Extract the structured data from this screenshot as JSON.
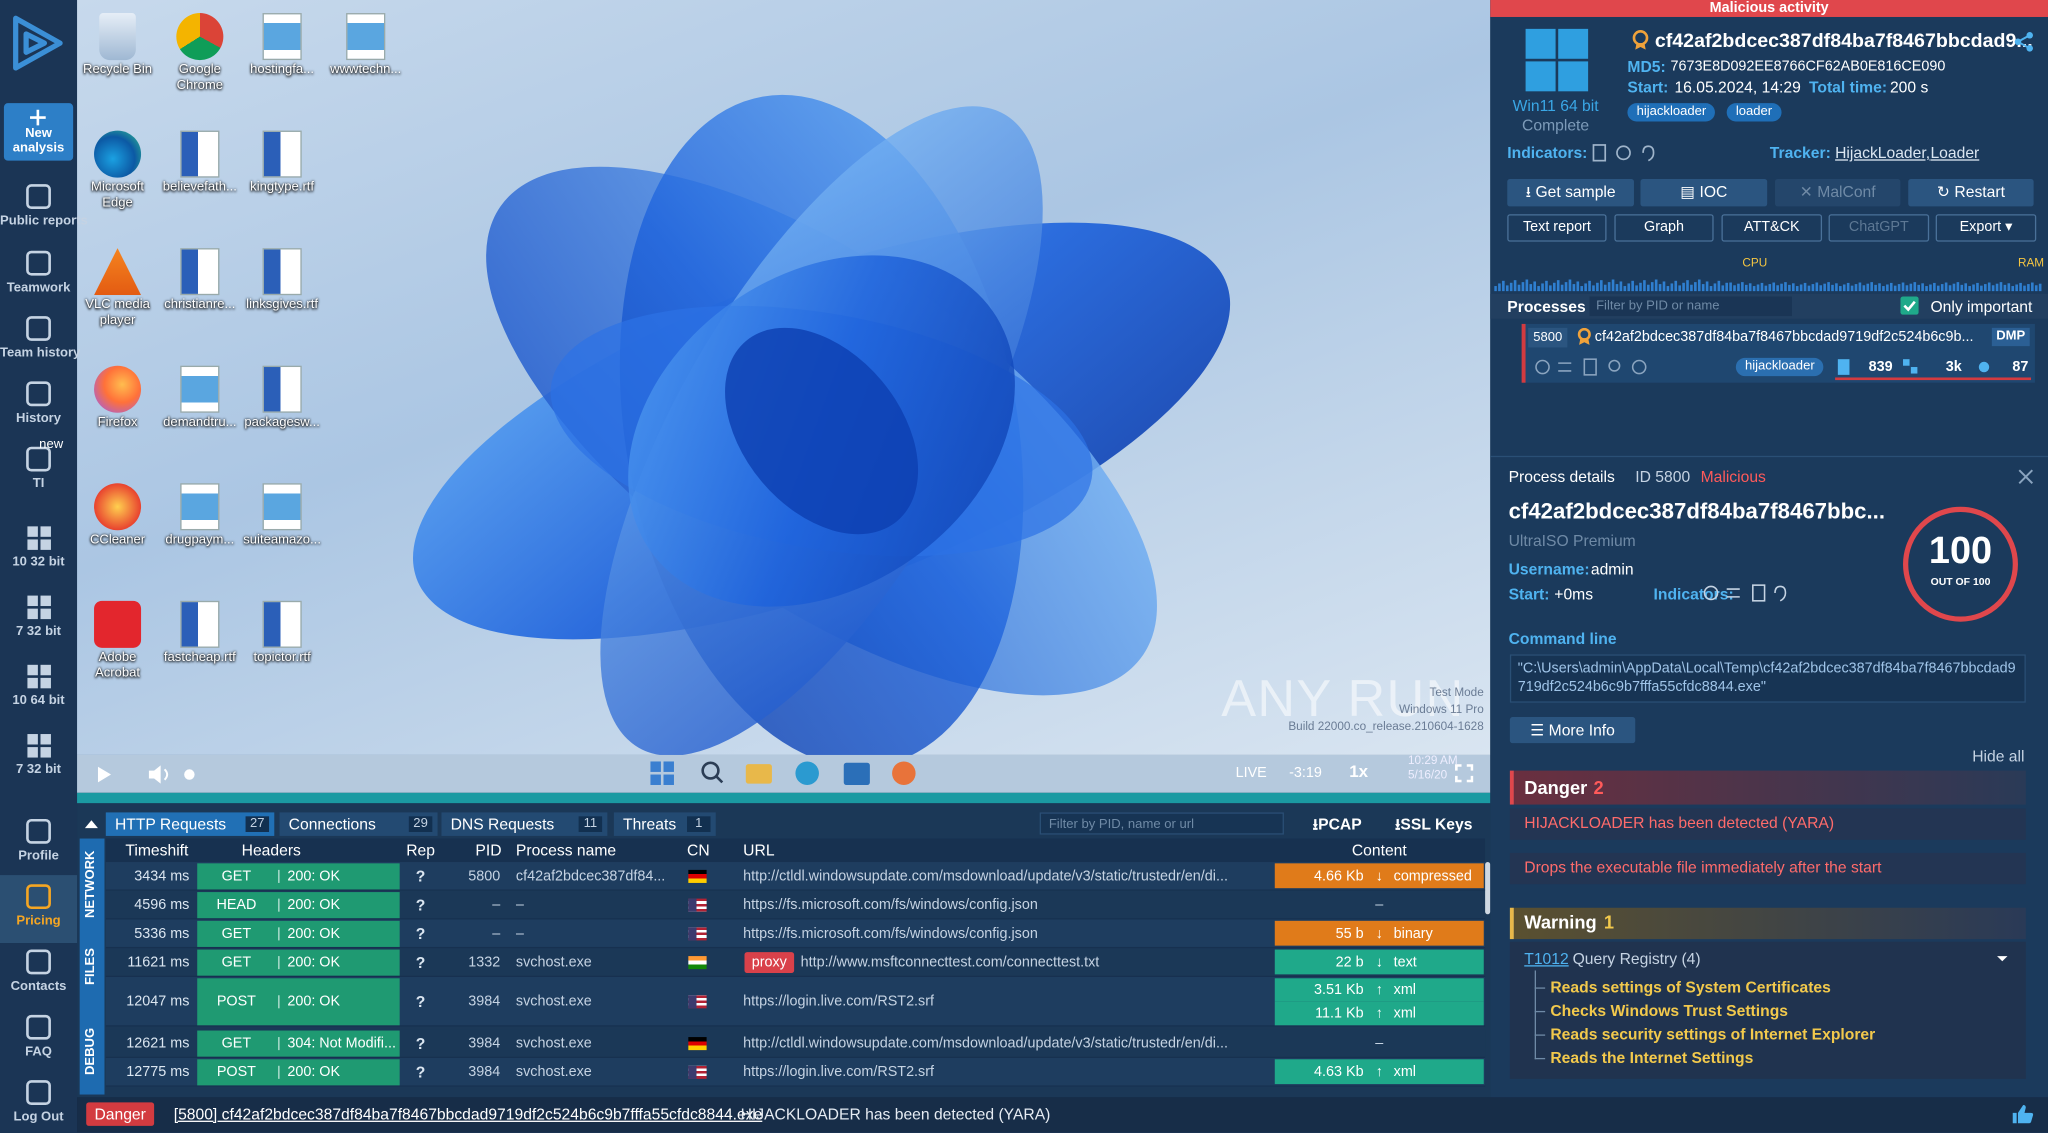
{
  "sidebar": {
    "new_analysis": "New analysis",
    "badge": "new",
    "items": [
      "Public reports",
      "Teamwork",
      "Team history",
      "History",
      "TI",
      "10 32 bit",
      "7 32 bit",
      "10 64 bit",
      "7 32 bit",
      "Profile",
      "Pricing",
      "Contacts",
      "FAQ",
      "Log Out"
    ]
  },
  "desktop": {
    "icons": [
      "Recycle Bin",
      "Google Chrome",
      "hostingfa...",
      "wwwtechn...",
      "Microsoft Edge",
      "believefath...",
      "kingtype.rtf",
      "VLC media player",
      "christianre...",
      "linksgives.rtf",
      "Firefox",
      "demandtru...",
      "packagesw...",
      "CCleaner",
      "drugpaym...",
      "suiteamazo...",
      "Adobe Acrobat",
      "fastcheap.rtf",
      "topictor.rtf"
    ],
    "watermark": {
      "logo": "ANY RUN",
      "mode": "Test Mode",
      "edition": "Windows 11 Pro",
      "build": "Build 22000.co_release.210604-1628"
    }
  },
  "player": {
    "live": "LIVE",
    "time": "-3:19",
    "speed": "1x",
    "clock": "10:29 AM",
    "date": "5/16/20"
  },
  "task": {
    "banner": "Malicious activity",
    "os": "Win11 64 bit",
    "status": "Complete",
    "title": "cf42af2bdcec387df84ba7f8467bbcdad9...",
    "md5_label": "MD5:",
    "md5": "7673E8D092EE8766CF62AB0E816CE090",
    "start_label": "Start:",
    "start": "16.05.2024, 14:29",
    "total_label": "Total time:",
    "total": "200 s",
    "tags": [
      "hijackloader",
      "loader"
    ],
    "indicators_label": "Indicators:",
    "tracker_label": "Tracker:",
    "trackers": [
      "HijackLoader,",
      "Loader"
    ],
    "buttons": [
      "Get sample",
      "IOC",
      "MalConf",
      "Restart"
    ],
    "links": [
      "Text report",
      "Graph",
      "ATT&CK",
      "ChatGPT",
      "Export"
    ],
    "cpu": "CPU",
    "ram": "RAM"
  },
  "processes": {
    "title": "Processes",
    "filter": "Filter by PID or name",
    "only_important": "Only important",
    "rows": [
      {
        "pid": "5800",
        "name": "cf42af2bdcec387df84ba7f8467bbcdad9719df2c524b6c9b...",
        "badge": "DMP",
        "tag": "hijackloader",
        "files": "839",
        "registry": "3k",
        "modules": "87"
      }
    ]
  },
  "details": {
    "title": "Process details",
    "id": "ID 5800",
    "verdict": "Malicious",
    "name": "cf42af2bdcec387df84ba7f8467bbc...",
    "product": "UltraISO Premium",
    "username_label": "Username:",
    "username": "admin",
    "start_label": "Start:",
    "start": "+0ms",
    "indicators_label": "Indicators:",
    "score": "100",
    "score_caption": "OUT OF 100",
    "cmd_label": "Command line",
    "cmd": "\"C:\\Users\\admin\\AppData\\Local\\Temp\\cf42af2bdcec387df84ba7f8467bbcdad9719df2c524b6c9b7fffa55cfdc8844.exe\"",
    "more": "More Info",
    "hide_all": "Hide all",
    "danger": {
      "label": "Danger",
      "count": "2",
      "items": [
        "HIJACKLOADER has been detected (YARA)",
        "Drops the executable file immediately after the start"
      ]
    },
    "warning": {
      "label": "Warning",
      "count": "1",
      "technique": "T1012",
      "group": "Query Registry (4)",
      "items": [
        "Reads settings of System Certificates",
        "Checks Windows Trust Settings",
        "Reads security settings of Internet Explorer",
        "Reads the Internet Settings"
      ]
    }
  },
  "network": {
    "tabs": [
      {
        "label": "HTTP Requests",
        "count": "27"
      },
      {
        "label": "Connections",
        "count": "29"
      },
      {
        "label": "DNS Requests",
        "count": "11"
      },
      {
        "label": "Threats",
        "count": "1"
      }
    ],
    "filter": "Filter by PID, name or url",
    "pcap": "PCAP",
    "ssl": "SSL Keys",
    "side": [
      "NETWORK",
      "FILES",
      "DEBUG"
    ],
    "columns": [
      "Timeshift",
      "Headers",
      "Rep",
      "PID",
      "Process name",
      "CN",
      "URL",
      "Content"
    ],
    "rows": [
      {
        "time": "3434 ms",
        "method": "GET",
        "status": "200: OK",
        "rep": "?",
        "pid": "5800",
        "process": "cf42af2bdcec387df84...",
        "cn": "de",
        "url": "http://ctldl.windowsupdate.com/msdownload/update/v3/static/trustedr/en/di...",
        "content": [
          {
            "size": "4.66 Kb",
            "arrow": "↓",
            "type": "compressed",
            "color": "#e07b1a"
          }
        ]
      },
      {
        "time": "4596 ms",
        "method": "HEAD",
        "status": "200: OK",
        "rep": "?",
        "pid": "–",
        "process": "–",
        "cn": "us",
        "url": "https://fs.microsoft.com/fs/windows/config.json",
        "content": "–"
      },
      {
        "time": "5336 ms",
        "method": "GET",
        "status": "200: OK",
        "rep": "?",
        "pid": "–",
        "process": "–",
        "cn": "us",
        "url": "https://fs.microsoft.com/fs/windows/config.json",
        "content": [
          {
            "size": "55 b",
            "arrow": "↓",
            "type": "binary",
            "color": "#e07b1a"
          }
        ]
      },
      {
        "time": "11621 ms",
        "method": "GET",
        "status": "200: OK",
        "rep": "?",
        "pid": "1332",
        "process": "svchost.exe",
        "cn": "in",
        "proxy": "proxy",
        "url": "http://www.msftconnecttest.com/connecttest.txt",
        "content": [
          {
            "size": "22 b",
            "arrow": "↓",
            "type": "text",
            "color": "#1fa98a"
          }
        ]
      },
      {
        "time": "12047 ms",
        "method": "POST",
        "status": "200: OK",
        "rep": "?",
        "pid": "3984",
        "process": "svchost.exe",
        "cn": "us",
        "url": "https://login.live.com/RST2.srf",
        "content": [
          {
            "size": "3.51 Kb",
            "arrow": "↑",
            "type": "xml",
            "color": "#1fa98a"
          },
          {
            "size": "11.1 Kb",
            "arrow": "↑",
            "type": "xml",
            "color": "#1fa98a"
          }
        ]
      },
      {
        "time": "12621 ms",
        "method": "GET",
        "status": "304: Not Modifi...",
        "rep": "?",
        "pid": "3984",
        "process": "svchost.exe",
        "cn": "de",
        "url": "http://ctldl.windowsupdate.com/msdownload/update/v3/static/trustedr/en/di...",
        "content": "–"
      },
      {
        "time": "12775 ms",
        "method": "POST",
        "status": "200: OK",
        "rep": "?",
        "pid": "3984",
        "process": "svchost.exe",
        "cn": "us",
        "url": "https://login.live.com/RST2.srf",
        "content": [
          {
            "size": "4.63 Kb",
            "arrow": "↑",
            "type": "xml",
            "color": "#1fa98a"
          }
        ]
      }
    ]
  },
  "status": {
    "level": "Danger",
    "process": "[5800] cf42af2bdcec387df84ba7f8467bbcdad9719df2c524b6c9b7fffa55cfdc8844.exe",
    "message": "HIJACKLOADER has been detected (YARA)"
  }
}
